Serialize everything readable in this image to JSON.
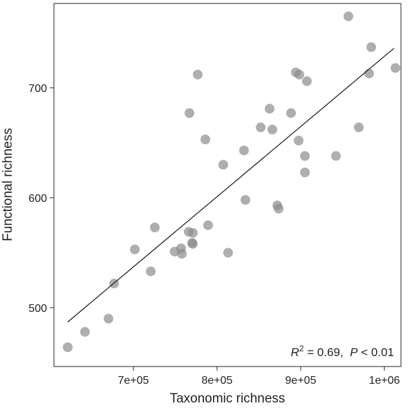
{
  "chart_data": {
    "type": "scatter",
    "x_label": "Taxonomic richness",
    "y_label": "Functional richness",
    "color": "#8c8c8c",
    "x": [
      621500,
      642100,
      670200,
      676900,
      701700,
      720700,
      725600,
      749300,
      757000,
      758000,
      766100,
      771100,
      770200,
      771000,
      767000,
      776900,
      786000,
      789300,
      807400,
      813200,
      832200,
      833900,
      852100,
      862800,
      866100,
      872000,
      873600,
      888400,
      894200,
      898300,
      897500,
      907400,
      905000,
      905000,
      942100,
      957000,
      969400,
      981800,
      984300,
      1013200
    ],
    "y": [
      464,
      478,
      490,
      522,
      553,
      533,
      573,
      551,
      554,
      549,
      569,
      568,
      559,
      558,
      677,
      712,
      653,
      575,
      630,
      550,
      643,
      598,
      664,
      681,
      662,
      593,
      590,
      677,
      714,
      712,
      652,
      706,
      638,
      623,
      638,
      765,
      664,
      713,
      737,
      718
    ],
    "fit": {
      "x": [
        621500,
        1011600
      ],
      "y": [
        487,
        736
      ]
    },
    "annotation": [
      "R",
      "2",
      " = 0.69,  ",
      "P",
      " < 0.01"
    ],
    "xlim": [
      605000,
      1019800
    ],
    "ylim": [
      446.5,
      776.7
    ],
    "xticks": [
      {
        "value": 700000,
        "label": "7e+05"
      },
      {
        "value": 800000,
        "label": "8e+05"
      },
      {
        "value": 900000,
        "label": "9e+05"
      },
      {
        "value": 1000000,
        "label": "1e+06"
      }
    ],
    "yticks": [
      500,
      600,
      700
    ]
  }
}
